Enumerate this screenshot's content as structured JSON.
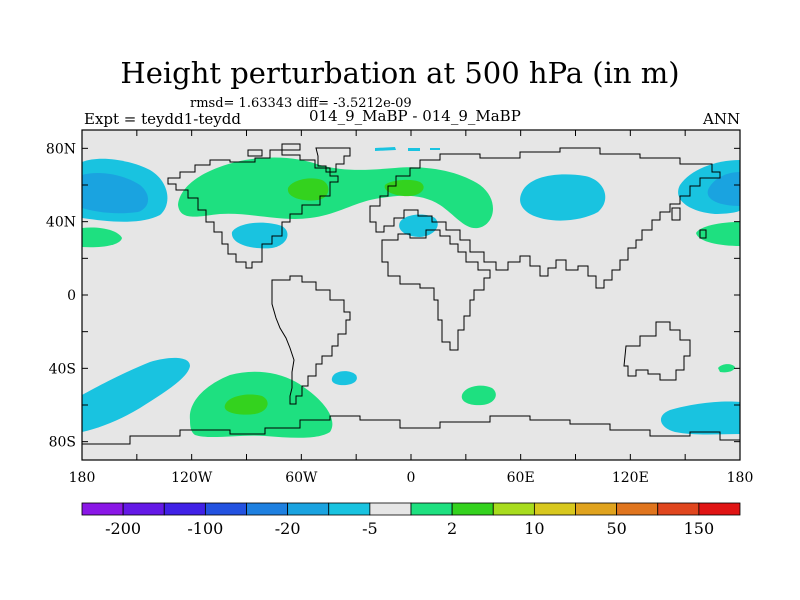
{
  "title": "Height perturbation at 500 hPa (in m)",
  "stats_line": "rmsd= 1.63343 diff= -3.5212e-09",
  "experiment_label": "Expt = teydd1-teydd",
  "subtitle": "014_9_MaBP - 014_9_MaBP",
  "season": "ANN",
  "map": {
    "projection": "cylindrical-equidistant",
    "lon_range": [
      -180,
      180
    ],
    "lat_range": [
      -90,
      90
    ],
    "lat_tick_labels": [
      {
        "value": 80,
        "label": "80N"
      },
      {
        "value": 40,
        "label": "40N"
      },
      {
        "value": 0,
        "label": "0"
      },
      {
        "value": -40,
        "label": "40S"
      },
      {
        "value": -80,
        "label": "80S"
      }
    ],
    "lon_tick_labels": [
      {
        "value": -180,
        "label": "180"
      },
      {
        "value": -120,
        "label": "120W"
      },
      {
        "value": -60,
        "label": "60W"
      },
      {
        "value": 0,
        "label": "0"
      },
      {
        "value": 60,
        "label": "60E"
      },
      {
        "value": 120,
        "label": "120E"
      },
      {
        "value": 180,
        "label": "180"
      }
    ],
    "background_color": "#e6e6e6"
  },
  "colorbar": {
    "colors": [
      "#8a17e6",
      "#6419e6",
      "#4021e6",
      "#2352e0",
      "#1e80e0",
      "#1aa3e0",
      "#19c3e0",
      "#e6e6e6",
      "#1ee080",
      "#34d21e",
      "#a8dc1e",
      "#d8c81e",
      "#e0a31e",
      "#e0751e",
      "#e0461e",
      "#e01414"
    ],
    "labels": [
      {
        "label": "-200",
        "boundary": 1
      },
      {
        "label": "-100",
        "boundary": 3
      },
      {
        "label": "-20",
        "boundary": 5
      },
      {
        "label": "-5",
        "boundary": 7
      },
      {
        "label": "2",
        "boundary": 9
      },
      {
        "label": "10",
        "boundary": 11
      },
      {
        "label": "50",
        "boundary": 13
      },
      {
        "label": "150",
        "boundary": 15
      }
    ]
  },
  "colors": {
    "negative_light": "#19c3e0",
    "negative_mid": "#1aa3e0",
    "positive_light": "#1ee080",
    "positive_mid": "#34d21e",
    "coastline": "#000000"
  }
}
